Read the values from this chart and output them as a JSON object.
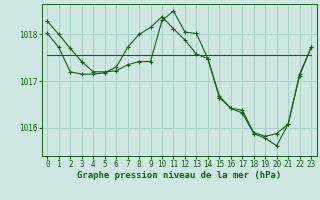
{
  "background_color": "#cce8e0",
  "plot_bg_color": "#cce8e0",
  "line_color": "#1a5c1a",
  "grid_color": "#a8cfc8",
  "xlabel": "Graphe pression niveau de la mer (hPa)",
  "xlabel_fontsize": 6.5,
  "tick_fontsize": 5.5,
  "ylim": [
    1015.4,
    1018.65
  ],
  "yticks": [
    1016,
    1017,
    1018
  ],
  "xlim": [
    -0.5,
    23.5
  ],
  "xticks": [
    0,
    1,
    2,
    3,
    4,
    5,
    6,
    7,
    8,
    9,
    10,
    11,
    12,
    13,
    14,
    15,
    16,
    17,
    18,
    19,
    20,
    21,
    22,
    23
  ],
  "series0": [
    1018.28,
    1018.0,
    1017.7,
    1017.42,
    1017.2,
    1017.2,
    1017.22,
    1017.35,
    1017.42,
    1017.42,
    1018.3,
    1018.5,
    1018.05,
    1018.02,
    1017.48,
    1016.65,
    1016.42,
    1016.38,
    1015.9,
    1015.82,
    1015.88,
    1016.08,
    1017.15,
    1017.72
  ],
  "series1": [
    1018.02,
    1017.72,
    1017.2,
    1017.15,
    1017.15,
    1017.18,
    1017.3,
    1017.72,
    1018.0,
    1018.15,
    1018.38,
    1018.12,
    1017.88,
    1017.58,
    1017.48,
    1016.68,
    1016.42,
    1016.32,
    1015.88,
    1015.78,
    1015.62,
    1016.08,
    1017.12,
    1017.72
  ],
  "series2_x": [
    0,
    23
  ],
  "series2_y": [
    1017.55,
    1017.55
  ]
}
